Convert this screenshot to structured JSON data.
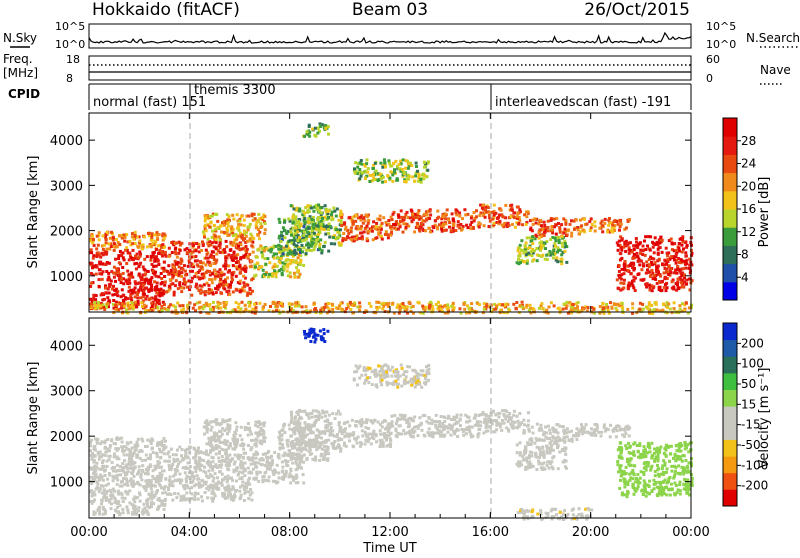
{
  "header": {
    "station": "Hokkaido (fitACF)",
    "beam": "Beam 03",
    "date": "26/Oct/2015"
  },
  "top_panels": {
    "nsky_label": "N.Sky",
    "nsky_ticks": [
      "10^5",
      "10^0"
    ],
    "nsearch_label": "N.Search",
    "nsearch_ticks": [
      "10^5",
      "10^0"
    ],
    "freq_label": "Freq.",
    "freq_unit": "[MHz]",
    "freq_ticks": [
      "18",
      "8"
    ],
    "nave_label": "Nave",
    "nave_ticks": [
      "60",
      "0"
    ],
    "cpid_label": "CPID",
    "cpid_segments": [
      {
        "text": "normal (fast) 151",
        "start_hour": 0
      },
      {
        "text": "themis 3300",
        "start_hour": 4
      },
      {
        "text": "interleavedscan (fast) -191",
        "start_hour": 16
      }
    ]
  },
  "chart_data": [
    {
      "type": "heatmap",
      "title": "",
      "xlabel": "Time UT",
      "ylabel": "Slant Range [km]",
      "x_ticks": [
        "00:00",
        "04:00",
        "08:00",
        "12:00",
        "16:00",
        "20:00",
        "00:00"
      ],
      "xlim_hours": [
        0,
        24
      ],
      "ylim_km": [
        200,
        4600
      ],
      "y_ticks": [
        1000,
        2000,
        3000,
        4000
      ],
      "colorbar": {
        "label": "Power [dB]",
        "ticks": [
          "28",
          "24",
          "20",
          "16",
          "12",
          "8",
          "4"
        ],
        "range": [
          0,
          30
        ],
        "colors": [
          "#0000e6",
          "#1f4fa8",
          "#2f6f5a",
          "#3a9c3a",
          "#b9d42a",
          "#f3c21a",
          "#f08a1a",
          "#e84a10",
          "#e41a10",
          "#e00000"
        ]
      },
      "echo_regions": [
        {
          "t0": 0.0,
          "t1": 3.0,
          "r0": 300,
          "r1": 1600,
          "power": 27
        },
        {
          "t0": 0.0,
          "t1": 3.0,
          "r0": 1600,
          "r1": 2000,
          "power": 20
        },
        {
          "t0": 3.0,
          "t1": 6.5,
          "r0": 600,
          "r1": 1800,
          "power": 24
        },
        {
          "t0": 4.5,
          "t1": 7.0,
          "r0": 1800,
          "r1": 2400,
          "power": 18
        },
        {
          "t0": 6.5,
          "t1": 8.5,
          "r0": 1000,
          "r1": 1700,
          "power": 14
        },
        {
          "t0": 7.5,
          "t1": 9.5,
          "r0": 1500,
          "r1": 2300,
          "power": 10
        },
        {
          "t0": 8.0,
          "t1": 10.0,
          "r0": 1700,
          "r1": 2600,
          "power": 12
        },
        {
          "t0": 10.0,
          "t1": 12.0,
          "r0": 1800,
          "r1": 2400,
          "power": 22
        },
        {
          "t0": 10.5,
          "t1": 13.5,
          "r0": 3100,
          "r1": 3600,
          "power": 13
        },
        {
          "t0": 12.0,
          "t1": 15.5,
          "r0": 2000,
          "r1": 2500,
          "power": 23
        },
        {
          "t0": 15.5,
          "t1": 17.5,
          "r0": 2100,
          "r1": 2600,
          "power": 22
        },
        {
          "t0": 17.5,
          "t1": 19.5,
          "r0": 1900,
          "r1": 2300,
          "power": 23
        },
        {
          "t0": 17.0,
          "t1": 19.0,
          "r0": 1300,
          "r1": 1900,
          "power": 13
        },
        {
          "t0": 19.5,
          "t1": 21.5,
          "r0": 2000,
          "r1": 2300,
          "power": 20
        },
        {
          "t0": 21.0,
          "t1": 24.0,
          "r0": 700,
          "r1": 1900,
          "power": 27
        },
        {
          "t0": 8.5,
          "t1": 9.5,
          "r0": 4100,
          "r1": 4400,
          "power": 11
        },
        {
          "t0": 0.0,
          "t1": 24.0,
          "r0": 200,
          "r1": 450,
          "power": 18
        }
      ]
    },
    {
      "type": "heatmap",
      "title": "",
      "xlabel": "Time UT",
      "ylabel": "Slant Range [km]",
      "x_ticks": [
        "00:00",
        "04:00",
        "08:00",
        "12:00",
        "16:00",
        "20:00",
        "00:00"
      ],
      "xlim_hours": [
        0,
        24
      ],
      "ylim_km": [
        200,
        4600
      ],
      "y_ticks": [
        1000,
        2000,
        3000,
        4000
      ],
      "colorbar": {
        "label": "Velocity [m s⁻¹]",
        "ticks": [
          "200",
          "100",
          "50",
          "15",
          "-15",
          "-50",
          "-100",
          "-200"
        ],
        "range": [
          -250,
          250
        ],
        "colors": [
          "#e00000",
          "#f05010",
          "#f39a10",
          "#f3c21a",
          "#c8c8c0",
          "#c8c8c0",
          "#8cd44a",
          "#3fbf3f",
          "#2a6f5a",
          "#1f5aa8",
          "#0a2ad0"
        ]
      },
      "echo_regions": [
        {
          "t0": 0.0,
          "t1": 3.0,
          "r0": 300,
          "r1": 1600,
          "velocity": 0
        },
        {
          "t0": 0.0,
          "t1": 3.0,
          "r0": 1600,
          "r1": 2000,
          "velocity": 0
        },
        {
          "t0": 3.0,
          "t1": 6.5,
          "r0": 600,
          "r1": 1800,
          "velocity": 0
        },
        {
          "t0": 4.5,
          "t1": 7.0,
          "r0": 1800,
          "r1": 2400,
          "velocity": 0
        },
        {
          "t0": 6.5,
          "t1": 8.5,
          "r0": 1000,
          "r1": 1700,
          "velocity": 0
        },
        {
          "t0": 7.5,
          "t1": 9.5,
          "r0": 1500,
          "r1": 2300,
          "velocity": 0
        },
        {
          "t0": 8.0,
          "t1": 10.0,
          "r0": 1700,
          "r1": 2600,
          "velocity": 0
        },
        {
          "t0": 10.0,
          "t1": 12.0,
          "r0": 1800,
          "r1": 2400,
          "velocity": 0
        },
        {
          "t0": 10.5,
          "t1": 13.5,
          "r0": 3100,
          "r1": 3600,
          "velocity": -60
        },
        {
          "t0": 12.0,
          "t1": 15.5,
          "r0": 2000,
          "r1": 2500,
          "velocity": 0
        },
        {
          "t0": 15.5,
          "t1": 17.5,
          "r0": 2100,
          "r1": 2600,
          "velocity": 0
        },
        {
          "t0": 17.5,
          "t1": 19.5,
          "r0": 1900,
          "r1": 2300,
          "velocity": 0
        },
        {
          "t0": 17.0,
          "t1": 19.0,
          "r0": 1300,
          "r1": 1900,
          "velocity": 0
        },
        {
          "t0": 19.5,
          "t1": 21.5,
          "r0": 2000,
          "r1": 2300,
          "velocity": 0
        },
        {
          "t0": 21.0,
          "t1": 24.0,
          "r0": 700,
          "r1": 1900,
          "velocity": 40
        },
        {
          "t0": 8.5,
          "t1": 9.5,
          "r0": 4100,
          "r1": 4400,
          "velocity": 220
        },
        {
          "t0": 17.0,
          "t1": 20.0,
          "r0": 200,
          "r1": 450,
          "velocity": -60
        }
      ]
    }
  ]
}
